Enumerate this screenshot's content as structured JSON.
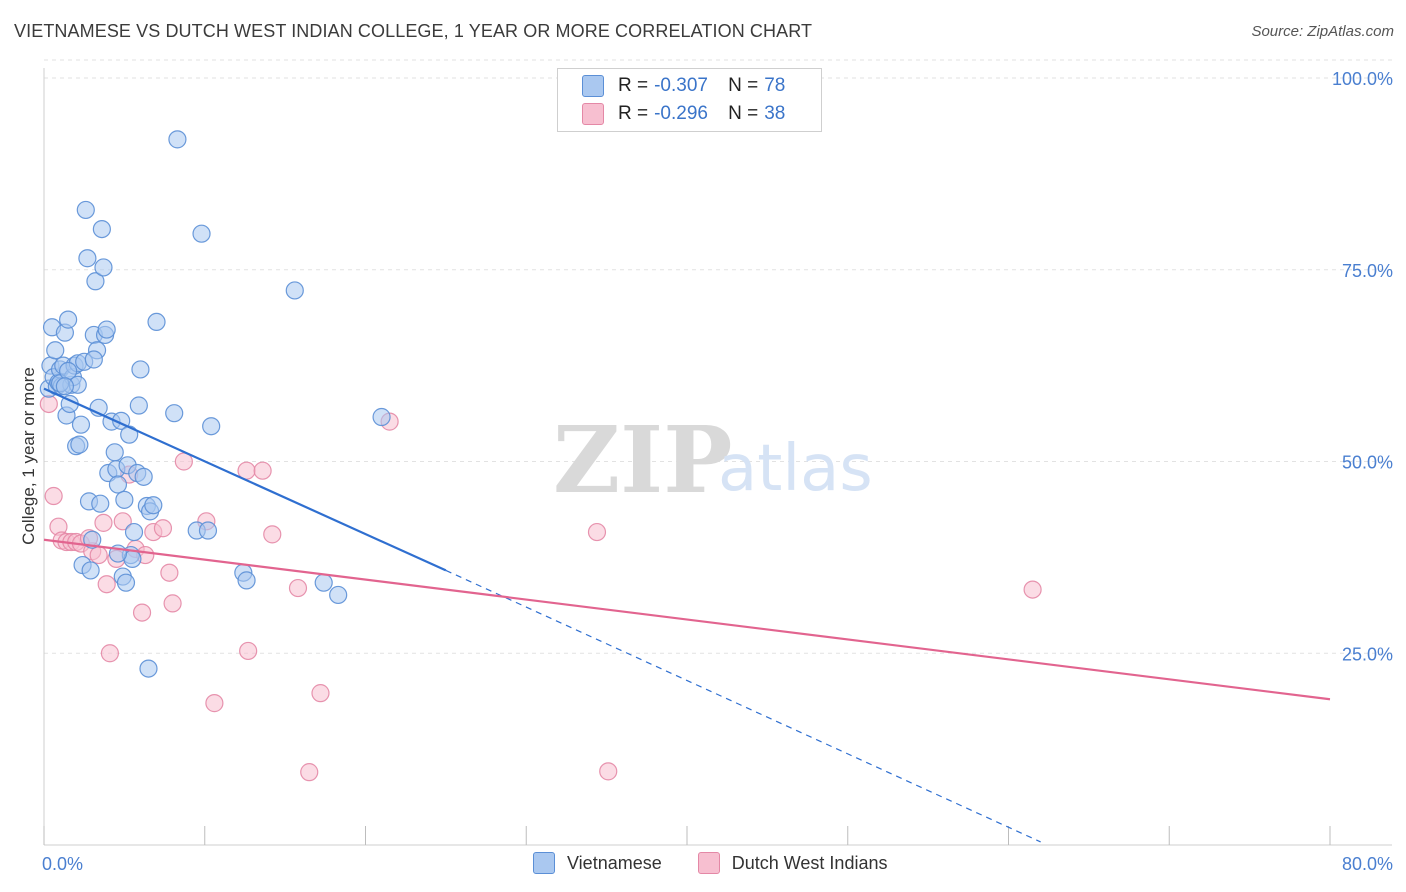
{
  "header": {
    "title": "VIETNAMESE VS DUTCH WEST INDIAN COLLEGE, 1 YEAR OR MORE CORRELATION CHART",
    "source": "Source: ZipAtlas.com"
  },
  "watermark": {
    "zip": "ZIP",
    "atlas": "atlas"
  },
  "legend": {
    "r_label": "R =",
    "n_label": "N =",
    "series": [
      {
        "name": "Vietnamese",
        "r": "-0.307",
        "n": "78"
      },
      {
        "name": "Dutch West Indians",
        "r": "-0.296",
        "n": "38"
      }
    ]
  },
  "colors": {
    "blue_fill": "#aac8f0",
    "blue_stroke": "#5b8fd6",
    "blue_line": "#2f6fd0",
    "pink_fill": "#f7bfd0",
    "pink_stroke": "#e488a6",
    "pink_line": "#e2648f",
    "tick_text": "#4a7fd0",
    "grid": "#e2e2e2"
  },
  "chart_data": {
    "type": "scatter",
    "title": "VIETNAMESE VS DUTCH WEST INDIAN COLLEGE, 1 YEAR OR MORE CORRELATION CHART",
    "xlabel": "",
    "ylabel": "College, 1 year or more",
    "xlim": [
      0,
      80
    ],
    "ylim": [
      0,
      100
    ],
    "x_tick_labels": [
      "0.0%",
      "80.0%"
    ],
    "y_ticks": [
      25,
      50,
      75,
      100
    ],
    "y_tick_labels": [
      "25.0%",
      "50.0%",
      "75.0%",
      "100.0%"
    ],
    "grid": true,
    "series": [
      {
        "name": "Vietnamese",
        "r": -0.307,
        "n": 78,
        "trend": {
          "x0": 0,
          "y0": 59.5,
          "x1": 25,
          "y1": 35.8,
          "dashed_to_x": 62,
          "dashed_to_y": 0.4
        },
        "points": [
          [
            0.3,
            59.5
          ],
          [
            0.4,
            62.5
          ],
          [
            0.5,
            67.5
          ],
          [
            0.6,
            61.0
          ],
          [
            0.7,
            64.5
          ],
          [
            0.8,
            59.8
          ],
          [
            0.9,
            60.3
          ],
          [
            1.0,
            62.0
          ],
          [
            1.1,
            59.8
          ],
          [
            1.2,
            62.5
          ],
          [
            1.3,
            66.8
          ],
          [
            1.4,
            56.0
          ],
          [
            1.5,
            68.5
          ],
          [
            1.6,
            57.5
          ],
          [
            1.7,
            60.0
          ],
          [
            1.8,
            61.0
          ],
          [
            1.9,
            62.5
          ],
          [
            2.0,
            52.0
          ],
          [
            2.1,
            62.8
          ],
          [
            2.2,
            52.2
          ],
          [
            2.3,
            54.8
          ],
          [
            2.4,
            36.5
          ],
          [
            2.5,
            63.0
          ],
          [
            2.6,
            82.8
          ],
          [
            2.7,
            76.5
          ],
          [
            2.8,
            44.8
          ],
          [
            2.9,
            35.8
          ],
          [
            3.0,
            39.8
          ],
          [
            3.1,
            66.5
          ],
          [
            3.2,
            73.5
          ],
          [
            3.3,
            64.5
          ],
          [
            3.4,
            57.0
          ],
          [
            3.5,
            44.5
          ],
          [
            3.6,
            80.3
          ],
          [
            3.7,
            75.3
          ],
          [
            3.8,
            66.5
          ],
          [
            3.9,
            67.2
          ],
          [
            4.0,
            48.5
          ],
          [
            4.2,
            55.2
          ],
          [
            4.4,
            51.2
          ],
          [
            4.5,
            49.0
          ],
          [
            4.6,
            47.0
          ],
          [
            4.8,
            55.3
          ],
          [
            4.9,
            35.0
          ],
          [
            5.0,
            45.0
          ],
          [
            5.1,
            34.2
          ],
          [
            5.2,
            49.5
          ],
          [
            5.3,
            53.5
          ],
          [
            5.4,
            37.8
          ],
          [
            5.5,
            37.3
          ],
          [
            5.6,
            40.8
          ],
          [
            5.8,
            48.5
          ],
          [
            5.9,
            57.3
          ],
          [
            6.0,
            62.0
          ],
          [
            6.2,
            48.0
          ],
          [
            6.4,
            44.2
          ],
          [
            6.5,
            23.0
          ],
          [
            6.6,
            43.5
          ],
          [
            6.8,
            44.3
          ],
          [
            7.0,
            68.2
          ],
          [
            8.1,
            56.3
          ],
          [
            8.3,
            92.0
          ],
          [
            9.5,
            41.0
          ],
          [
            9.8,
            79.7
          ],
          [
            10.2,
            41.0
          ],
          [
            10.4,
            54.6
          ],
          [
            12.4,
            35.5
          ],
          [
            12.6,
            34.5
          ],
          [
            15.6,
            72.3
          ],
          [
            17.4,
            34.2
          ],
          [
            18.3,
            32.6
          ],
          [
            21.0,
            55.8
          ],
          [
            1.0,
            60.2
          ],
          [
            1.5,
            61.8
          ],
          [
            3.1,
            63.3
          ],
          [
            4.6,
            38.0
          ],
          [
            2.1,
            60.0
          ],
          [
            1.3,
            59.8
          ]
        ]
      },
      {
        "name": "Dutch West Indians",
        "r": -0.296,
        "n": 38,
        "trend": {
          "x0": 0,
          "y0": 39.8,
          "x1": 80,
          "y1": 19.0
        },
        "points": [
          [
            0.3,
            57.5
          ],
          [
            0.6,
            45.5
          ],
          [
            0.9,
            41.5
          ],
          [
            1.1,
            39.7
          ],
          [
            1.4,
            39.5
          ],
          [
            1.7,
            39.5
          ],
          [
            2.0,
            39.5
          ],
          [
            2.3,
            39.3
          ],
          [
            3.0,
            38.3
          ],
          [
            3.4,
            37.8
          ],
          [
            3.7,
            42.0
          ],
          [
            3.9,
            34.0
          ],
          [
            4.1,
            25.0
          ],
          [
            4.5,
            37.3
          ],
          [
            4.9,
            42.2
          ],
          [
            5.3,
            48.3
          ],
          [
            5.7,
            38.6
          ],
          [
            6.1,
            30.3
          ],
          [
            6.3,
            37.8
          ],
          [
            6.8,
            40.8
          ],
          [
            7.4,
            41.3
          ],
          [
            7.8,
            35.5
          ],
          [
            8.0,
            31.5
          ],
          [
            8.7,
            50.0
          ],
          [
            10.1,
            42.2
          ],
          [
            10.6,
            18.5
          ],
          [
            12.6,
            48.8
          ],
          [
            12.7,
            25.3
          ],
          [
            13.6,
            48.8
          ],
          [
            14.2,
            40.5
          ],
          [
            15.8,
            33.5
          ],
          [
            16.5,
            9.5
          ],
          [
            17.2,
            19.8
          ],
          [
            21.5,
            55.2
          ],
          [
            34.4,
            40.8
          ],
          [
            35.1,
            9.6
          ],
          [
            61.5,
            33.3
          ],
          [
            2.8,
            40.0
          ]
        ]
      }
    ]
  }
}
